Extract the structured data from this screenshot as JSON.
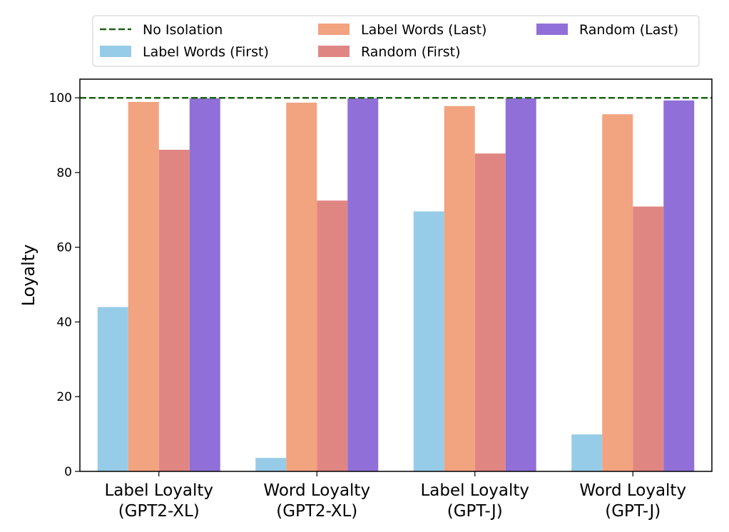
{
  "chart_data": {
    "type": "bar",
    "title": "",
    "xlabel": "",
    "ylabel": "Loyalty",
    "ylim": [
      0,
      105
    ],
    "yticks": [
      0,
      20,
      40,
      60,
      80,
      100
    ],
    "grid": false,
    "legend_placement": "top-center",
    "categories": [
      [
        "Label Loyalty",
        "(GPT2-XL)"
      ],
      [
        "Word Loyalty",
        "(GPT2-XL)"
      ],
      [
        "Label Loyalty",
        "(GPT-J)"
      ],
      [
        "Word Loyalty",
        "(GPT-J)"
      ]
    ],
    "series": [
      {
        "name": "Label Words (First)",
        "color": "#97cce8",
        "values": [
          44.0,
          3.6,
          69.6,
          9.9
        ]
      },
      {
        "name": "Label Words (Last)",
        "color": "#f2a37f",
        "values": [
          98.9,
          98.7,
          97.8,
          95.6
        ]
      },
      {
        "name": "Random (First)",
        "color": "#e08682",
        "values": [
          86.1,
          72.5,
          85.1,
          70.9
        ]
      },
      {
        "name": "Random (Last)",
        "color": "#9070d8",
        "values": [
          99.9,
          99.9,
          99.9,
          99.3
        ]
      }
    ],
    "reference_line": {
      "name": "No Isolation",
      "value": 100,
      "color": "#1a6312",
      "style": "dashed"
    }
  }
}
